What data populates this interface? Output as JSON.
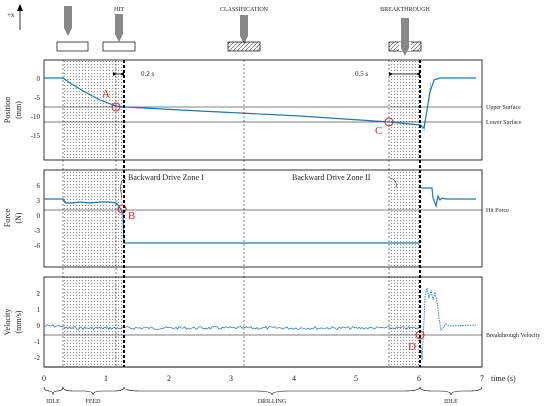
{
  "top_labels": {
    "axis": "+x",
    "hit": "HIT",
    "classification": "CLASSIFICATION",
    "breakthrough": "BREAKTHROUGH"
  },
  "intervals": {
    "t1": "0.2 s",
    "t2": "0.5 s"
  },
  "panels": {
    "position": {
      "ylabel": "Position",
      "yunit": "(mm)",
      "ticks": [
        "0",
        "-5",
        "-10",
        "-15"
      ],
      "right_labels": [
        "Upper Surface",
        "Lower Surface"
      ]
    },
    "force": {
      "ylabel": "Force",
      "yunit": "(N)",
      "ticks": [
        "6",
        "3",
        "0",
        "-3",
        "-6"
      ],
      "right_labels": [
        "Hit Force"
      ],
      "annotations": [
        "Backward Drive Zone I",
        "Backward Drive Zone II"
      ]
    },
    "velocity": {
      "ylabel": "Velocity",
      "yunit": "(mm/s)",
      "ticks": [
        "2",
        "1",
        "0",
        "-1",
        "-2"
      ],
      "right_labels": [
        "Breakthrough Velocity"
      ]
    }
  },
  "markers": [
    "A",
    "B",
    "C",
    "D"
  ],
  "x_axis": {
    "ticks": [
      "0",
      "1",
      "2",
      "3",
      "4",
      "5",
      "6",
      "7"
    ],
    "label": "time (s)"
  },
  "phases": [
    "IDLE",
    "FEED",
    "DRILLING",
    "IDLE"
  ],
  "colors": {
    "signal": "#1f77b4",
    "marker": "#e31a1c"
  }
}
